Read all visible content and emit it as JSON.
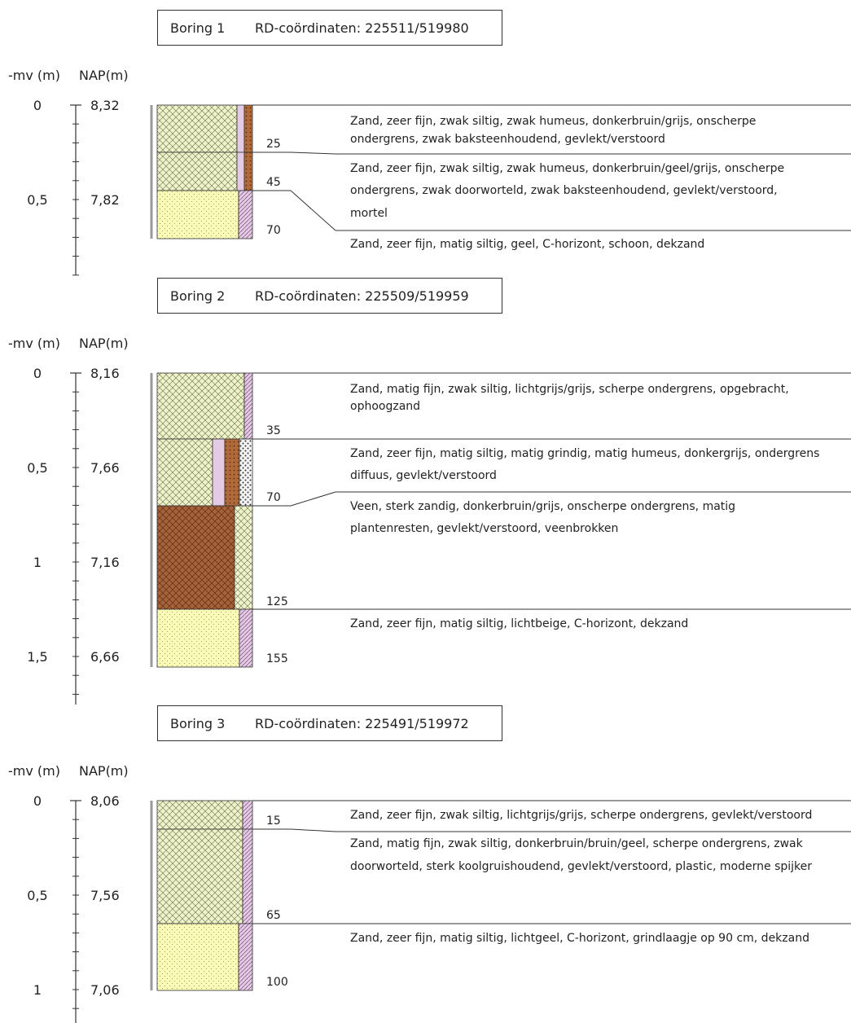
{
  "mv_label": "-mv (m)",
  "nap_label": "NAP(m)",
  "borings": [
    {
      "name": "Boring 1",
      "coords": "RD-coördinaten: 225511/519980",
      "scale": [
        {
          "mv": "0",
          "nap": "8,32"
        },
        {
          "mv": "0,5",
          "nap": "7,82"
        }
      ],
      "depths": [
        "25",
        "45",
        "70"
      ],
      "descriptions": [
        [
          "Zand, zeer fijn, zwak siltig, zwak humeus, donkerbruin/grijs, onscherpe",
          "ondergrens, zwak baksteenhoudend, gevlekt/verstoord"
        ],
        [
          "Zand, zeer fijn, zwak siltig, zwak humeus, donkerbruin/geel/grijs, onscherpe",
          "ondergrens, zwak doorworteld, zwak baksteenhoudend, gevlekt/verstoord,",
          "mortel"
        ],
        [
          "Zand, zeer fijn, matig siltig, geel, C-horizont, schoon, dekzand"
        ]
      ]
    },
    {
      "name": "Boring 2",
      "coords": "RD-coördinaten: 225509/519959",
      "scale": [
        {
          "mv": "0",
          "nap": "8,16"
        },
        {
          "mv": "0,5",
          "nap": "7,66"
        },
        {
          "mv": "1",
          "nap": "7,16"
        },
        {
          "mv": "1,5",
          "nap": "6,66"
        }
      ],
      "depths": [
        "35",
        "70",
        "125",
        "155"
      ],
      "descriptions": [
        [
          "Zand, matig fijn, zwak siltig, lichtgrijs/grijs, scherpe ondergrens, opgebracht,",
          "ophoogzand"
        ],
        [
          "Zand, zeer fijn, matig siltig, matig grindig, matig humeus, donkergrijs, ondergrens",
          "diffuus, gevlekt/verstoord"
        ],
        [
          "Veen, sterk zandig, donkerbruin/grijs, onscherpe ondergrens, matig",
          "plantenresten, gevlekt/verstoord, veenbrokken"
        ],
        [
          "Zand, zeer fijn, matig siltig, lichtbeige, C-horizont, dekzand"
        ]
      ]
    },
    {
      "name": "Boring 3",
      "coords": "RD-coördinaten: 225491/519972",
      "scale": [
        {
          "mv": "0",
          "nap": "8,06"
        },
        {
          "mv": "0,5",
          "nap": "7,56"
        },
        {
          "mv": "1",
          "nap": "7,06"
        }
      ],
      "depths": [
        "15",
        "65",
        "100"
      ],
      "descriptions": [
        [
          "Zand, zeer fijn, zwak siltig, lichtgrijs/grijs, scherpe ondergrens, gevlekt/verstoord"
        ],
        [
          "Zand, matig fijn, zwak siltig, donkerbruin/bruin/geel, scherpe ondergrens, zwak",
          "doorworteld, sterk koolgruishoudend, gevlekt/verstoord, plastic, moderne spijker"
        ],
        [
          "Zand, zeer fijn, matig siltig, lichtgeel, C-horizont, grindlaagje op 90 cm, dekzand"
        ]
      ]
    }
  ],
  "colors": {
    "sand_hatched": "#eef3c9",
    "sand_yellow": "#fbfbb8",
    "peat": "#a8623a",
    "pink": "#e3cbe3",
    "line": "#333333"
  }
}
